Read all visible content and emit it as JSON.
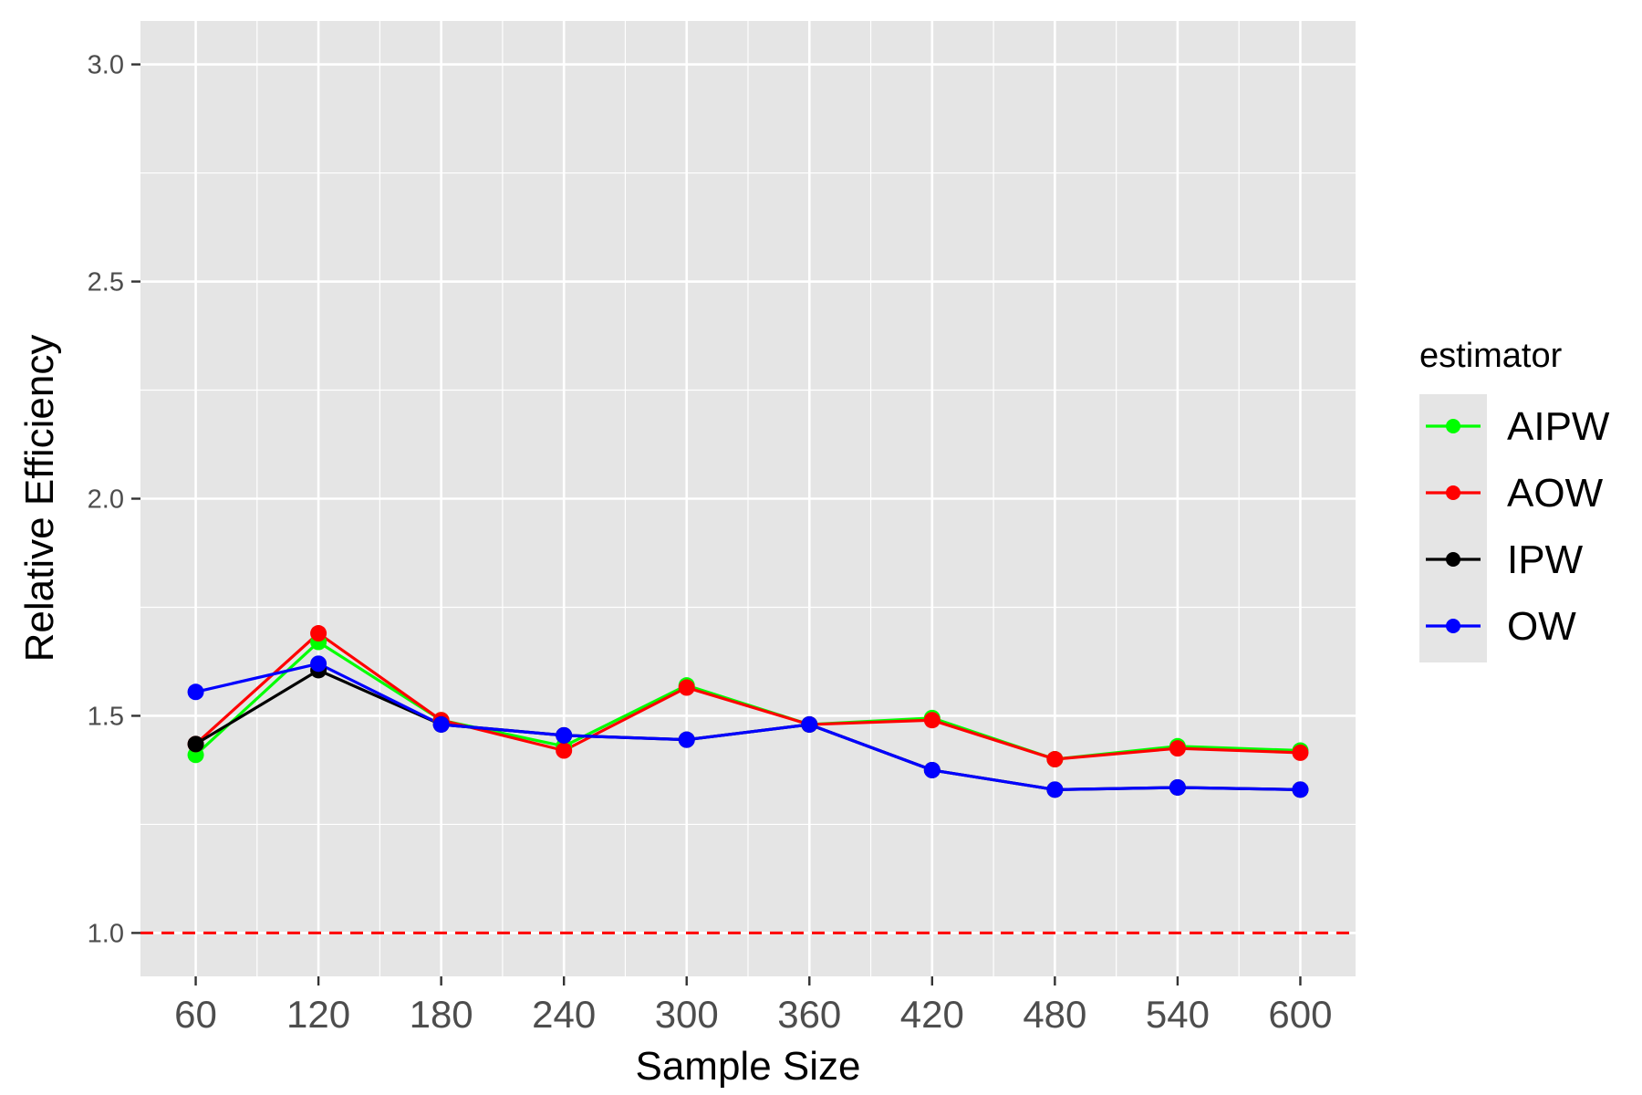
{
  "chart_data": {
    "type": "line",
    "xlabel": "Sample Size",
    "ylabel": "Relative Efficiency",
    "x": [
      60,
      120,
      180,
      240,
      300,
      360,
      420,
      480,
      540,
      600
    ],
    "x_tick_labels": [
      "60",
      "120",
      "180",
      "240",
      "300",
      "360",
      "420",
      "480",
      "540",
      "600"
    ],
    "ylim": [
      0.9,
      3.1
    ],
    "y_ticks": [
      1.0,
      1.5,
      2.0,
      2.5,
      3.0
    ],
    "y_tick_labels": [
      "1.0",
      "1.5",
      "2.0",
      "2.5",
      "3.0"
    ],
    "grid": true,
    "legend": {
      "title": "estimator",
      "position": "right"
    },
    "reference_line": {
      "y": 1.0,
      "style": "dashed",
      "color": "#ff0000"
    },
    "series": [
      {
        "name": "AIPW",
        "color": "#00ff00",
        "values": [
          1.41,
          1.67,
          1.49,
          1.43,
          1.57,
          1.48,
          1.495,
          1.4,
          1.43,
          1.42
        ]
      },
      {
        "name": "AOW",
        "color": "#ff0000",
        "values": [
          1.435,
          1.69,
          1.49,
          1.42,
          1.565,
          1.48,
          1.49,
          1.4,
          1.425,
          1.415
        ]
      },
      {
        "name": "IPW",
        "color": "#000000",
        "values": [
          1.435,
          1.605,
          1.48,
          1.455,
          1.445,
          1.48,
          1.375,
          1.33,
          1.335,
          1.33
        ]
      },
      {
        "name": "OW",
        "color": "#0000ff",
        "values": [
          1.555,
          1.62,
          1.48,
          1.455,
          1.445,
          1.48,
          1.375,
          1.33,
          1.335,
          1.33
        ]
      }
    ]
  }
}
